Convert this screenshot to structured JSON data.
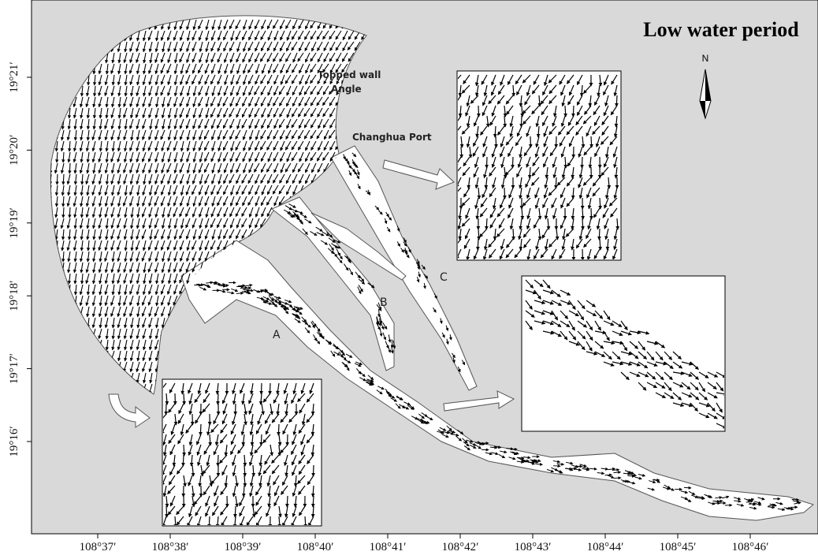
{
  "title": "Low water period",
  "north_label": "N",
  "annotations": [
    "Topped wall",
    "Angle",
    "Changhua Port",
    "A",
    "B",
    "C"
  ],
  "x_axis_labels": [
    "108°37′",
    "108°38′",
    "108°39′",
    "108°40′",
    "108°41′",
    "108°42′",
    "108°43′",
    "108°44′",
    "108°45′",
    "108°46′"
  ],
  "y_axis_labels": [
    "19°21′",
    "19°20′",
    "19°19′",
    "19°18′",
    "19°17′",
    "19°16′"
  ]
}
